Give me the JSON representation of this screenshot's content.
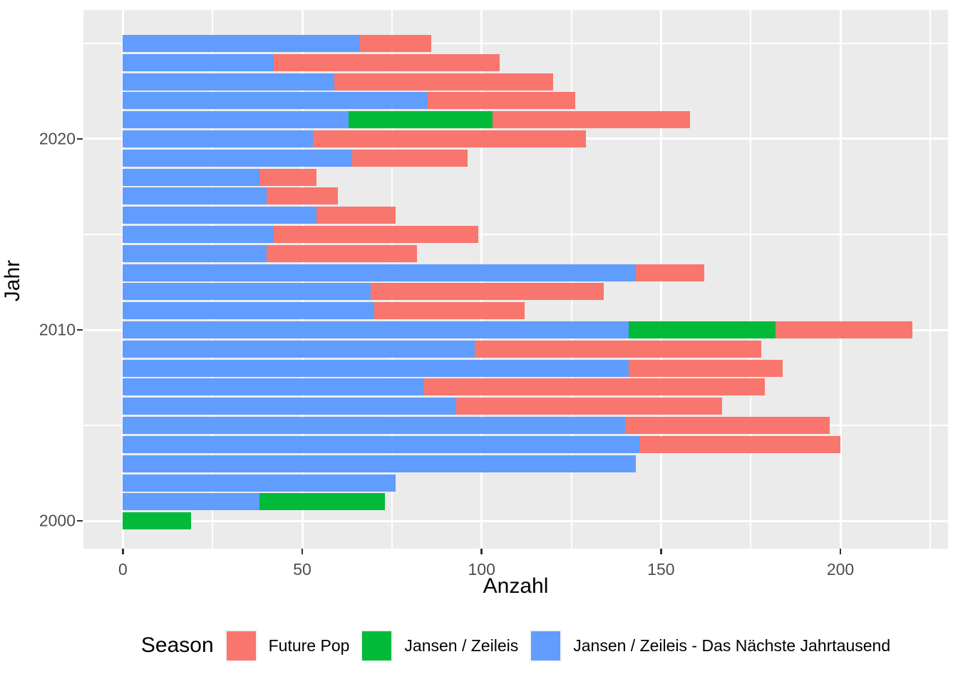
{
  "legend": {
    "title": "Season",
    "items": [
      {
        "label": "Future Pop",
        "color": "#F8766D"
      },
      {
        "label": "Jansen / Zeileis",
        "color": "#00BA38"
      },
      {
        "label": "Jansen / Zeileis - Das Nächste Jahrtausend",
        "color": "#619CFF"
      }
    ]
  },
  "chart_data": {
    "type": "bar",
    "orientation": "horizontal",
    "stacked": true,
    "title": "",
    "xlabel": "Anzahl",
    "ylabel": "Jahr",
    "legend_title": "Season",
    "legend_position": "bottom",
    "panel_background": "#EBEBEB",
    "grid_color": "#FFFFFF",
    "x_ticks": [
      0,
      50,
      100,
      150,
      200
    ],
    "x_minor_ticks": [
      25,
      75,
      125,
      175,
      225
    ],
    "y_ticks": [
      2000,
      2010,
      2020
    ],
    "y_minor_ticks": [
      2005,
      2015,
      2025
    ],
    "x_domain": [
      -11,
      230
    ],
    "y_domain": [
      1998.55,
      2026.75
    ],
    "series": [
      {
        "name": "Jansen / Zeileis - Das Nächste Jahrtausend",
        "color": "#619CFF"
      },
      {
        "name": "Jansen / Zeileis",
        "color": "#00BA38"
      },
      {
        "name": "Future Pop",
        "color": "#F8766D"
      }
    ],
    "columns": [
      "year",
      "Jansen / Zeileis - Das Nächste Jahrtausend",
      "Jansen / Zeileis",
      "Future Pop"
    ],
    "rows": [
      [
        2025,
        66,
        0,
        20
      ],
      [
        2024,
        42,
        0,
        63
      ],
      [
        2023,
        59,
        0,
        61
      ],
      [
        2022,
        85,
        0,
        41
      ],
      [
        2021,
        63,
        40,
        55
      ],
      [
        2020,
        53,
        0,
        76
      ],
      [
        2019,
        64,
        0,
        32
      ],
      [
        2018,
        38,
        0,
        16
      ],
      [
        2017,
        40,
        0,
        20
      ],
      [
        2016,
        54,
        0,
        22
      ],
      [
        2015,
        42,
        0,
        57
      ],
      [
        2014,
        40,
        0,
        42
      ],
      [
        2013,
        143,
        0,
        19
      ],
      [
        2012,
        69,
        0,
        65
      ],
      [
        2011,
        70,
        0,
        42
      ],
      [
        2010,
        141,
        41,
        38
      ],
      [
        2009,
        98,
        0,
        80
      ],
      [
        2008,
        141,
        0,
        43
      ],
      [
        2007,
        84,
        0,
        95
      ],
      [
        2006,
        93,
        0,
        74
      ],
      [
        2005,
        140,
        0,
        57
      ],
      [
        2004,
        144,
        0,
        56
      ],
      [
        2003,
        143,
        0,
        0
      ],
      [
        2002,
        76,
        0,
        0
      ],
      [
        2001,
        38,
        35,
        0
      ],
      [
        2000,
        0,
        19,
        0
      ]
    ]
  }
}
